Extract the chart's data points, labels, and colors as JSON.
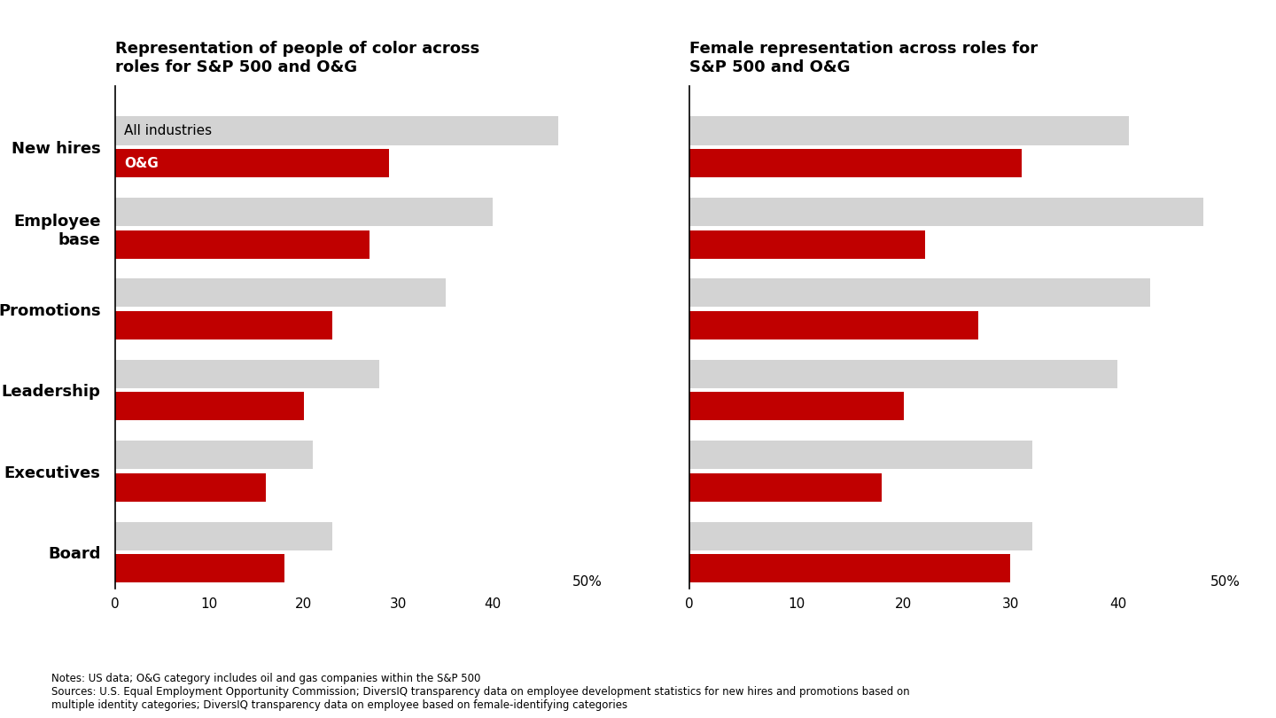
{
  "left_title": "Representation of people of color across\nroles for S&P 500 and O&G",
  "right_title": "Female representation across roles for\nS&P 500 and O&G",
  "categories": [
    "New hires",
    "Employee\nbase",
    "Promotions",
    "Leadership",
    "Executives",
    "Board"
  ],
  "left_all_industries": [
    47,
    40,
    35,
    28,
    21,
    23
  ],
  "left_oag": [
    29,
    27,
    23,
    20,
    16,
    18
  ],
  "right_all_industries": [
    41,
    48,
    43,
    40,
    32,
    32
  ],
  "right_oag": [
    31,
    22,
    27,
    20,
    18,
    30
  ],
  "color_all": "#d3d3d3",
  "color_oag": "#c00000",
  "xlim": [
    0,
    50
  ],
  "xticks": [
    0,
    10,
    20,
    30,
    40
  ],
  "legend_all": "All industries",
  "legend_oag": "O&G",
  "notes_line1": "Notes: US data; O&G category includes oil and gas companies within the S&P 500",
  "notes_line2": "Sources: U.S. Equal Employment Opportunity Commission; DiversIQ transparency data on employee development statistics for new hires and promotions based on",
  "notes_line3": "multiple identity categories; DiversIQ transparency data on employee based on female-identifying categories",
  "background_color": "#ffffff"
}
